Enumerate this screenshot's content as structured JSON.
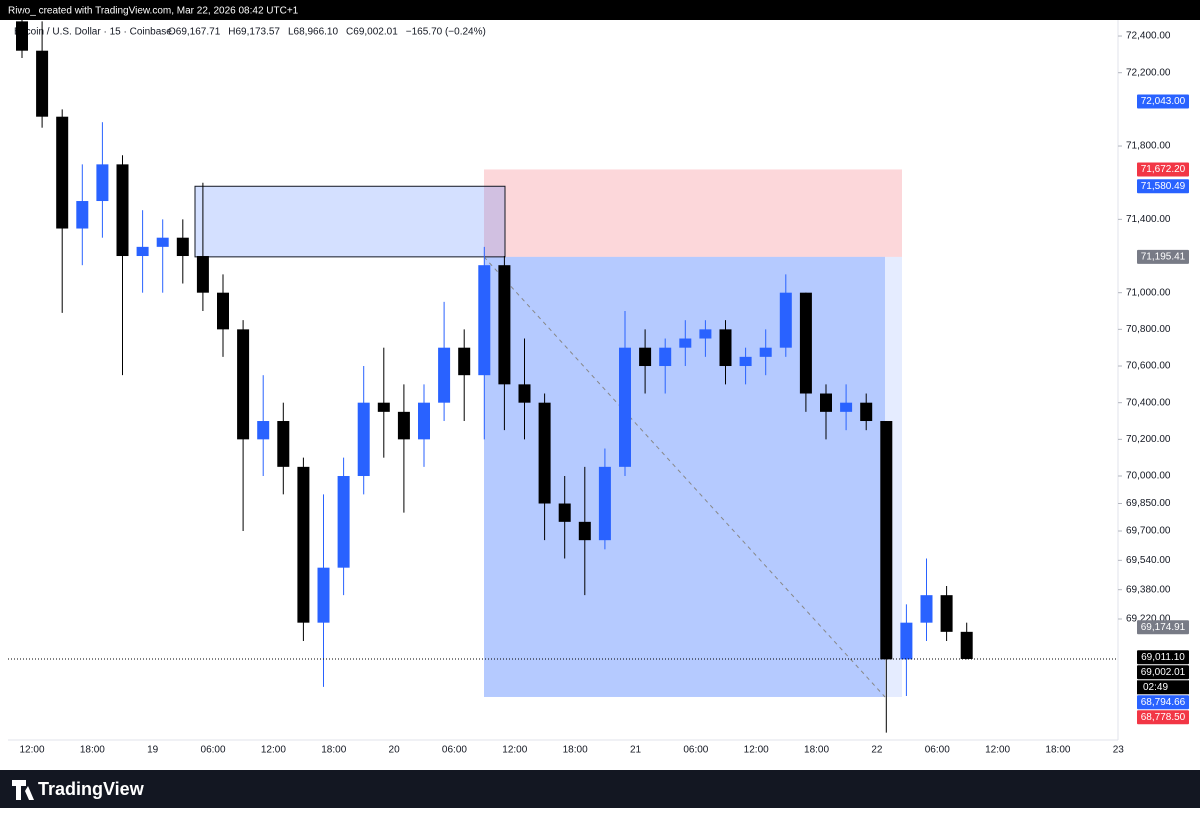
{
  "header": {
    "credit": "Riwo_ created with TradingView.com, Mar 22, 2026 08:42 UTC+1"
  },
  "footer": {
    "brand": "TradingView"
  },
  "chart_data": {
    "type": "candlestick",
    "title": "Bitcoin / U.S. Dollar · 15 · Coinbase",
    "ohlc_readout": [
      "O69,167.71",
      "H69,173.57",
      "L68,966.10",
      "C69,002.01",
      "−165.70 (−0.24%)"
    ],
    "up_color": "#2962ff",
    "down_color": "#000000",
    "candles": {
      "open": [
        72480,
        72320,
        71960,
        71350,
        71500,
        71700,
        71200,
        71250,
        71300,
        71200,
        71000,
        70800,
        70200,
        70300,
        70050,
        69200,
        69500,
        70000,
        70400,
        70350,
        70200,
        70400,
        70700,
        70550,
        71150,
        70500,
        70400,
        69850,
        69750,
        69650,
        70050,
        70700,
        70600,
        70700,
        70750,
        70800,
        70600,
        70650,
        70700,
        71000,
        70450,
        70350,
        70400,
        70300,
        69000,
        69200,
        69350,
        69150
      ],
      "high": [
        72540,
        72480,
        72000,
        71700,
        71930,
        71750,
        71450,
        71400,
        71400,
        71600,
        71100,
        70850,
        70550,
        70400,
        70100,
        69900,
        70100,
        70600,
        70700,
        70500,
        70500,
        70950,
        70800,
        71250,
        71200,
        70750,
        70450,
        70000,
        70050,
        70150,
        70900,
        70800,
        70750,
        70850,
        70850,
        70850,
        70700,
        70800,
        71100,
        71000,
        70500,
        70500,
        70450,
        70300,
        69300,
        69550,
        69400,
        69200
      ],
      "low": [
        72280,
        71900,
        70890,
        71150,
        71300,
        70550,
        71000,
        71000,
        71050,
        70900,
        70650,
        69700,
        70000,
        69900,
        69100,
        68850,
        69350,
        69900,
        70100,
        69800,
        70050,
        70300,
        70300,
        70200,
        70250,
        70200,
        69650,
        69550,
        69350,
        69600,
        70000,
        70450,
        70450,
        70600,
        70650,
        70500,
        70500,
        70550,
        70650,
        70350,
        70200,
        70250,
        70250,
        68600,
        68800,
        69100,
        69100,
        69000
      ],
      "close": [
        72320,
        71960,
        71350,
        71500,
        71700,
        71200,
        71250,
        71300,
        71200,
        71000,
        70800,
        70200,
        70300,
        70050,
        69200,
        69500,
        70000,
        70400,
        70350,
        70200,
        70400,
        70700,
        70550,
        71150,
        70500,
        70400,
        69850,
        69750,
        69650,
        70050,
        70700,
        70600,
        70700,
        70750,
        70800,
        70600,
        70650,
        70700,
        71000,
        70450,
        70350,
        70400,
        70300,
        69000,
        69200,
        69350,
        69150,
        69002.01
      ]
    },
    "time_labels": [
      "12:00",
      "18:00",
      "19",
      "06:00",
      "12:00",
      "18:00",
      "20",
      "06:00",
      "12:00",
      "18:00",
      "21",
      "06:00",
      "12:00",
      "18:00",
      "22",
      "06:00",
      "12:00",
      "18:00",
      "23"
    ],
    "ylim": [
      68560,
      72542
    ],
    "yticks": [
      {
        "value": 72400,
        "label": "72,400.00"
      },
      {
        "value": 72200,
        "label": "72,200.00"
      },
      {
        "value": 71800,
        "label": "71,800.00"
      },
      {
        "value": 71400,
        "label": "71,400.00"
      },
      {
        "value": 71000,
        "label": "71,000.00"
      },
      {
        "value": 70800,
        "label": "70,800.00"
      },
      {
        "value": 70600,
        "label": "70,600.00"
      },
      {
        "value": 70400,
        "label": "70,400.00"
      },
      {
        "value": 70200,
        "label": "70,200.00"
      },
      {
        "value": 70000,
        "label": "70,000.00"
      },
      {
        "value": 69850,
        "label": "69,850.00"
      },
      {
        "value": 69700,
        "label": "69,700.00"
      },
      {
        "value": 69540,
        "label": "69,540.00"
      },
      {
        "value": 69380,
        "label": "69,380.00"
      },
      {
        "value": 69220,
        "label": "69,220.00"
      }
    ],
    "price_tags": [
      {
        "value": 72043,
        "label": "72,043.00",
        "color": "#2962ff"
      },
      {
        "value": 71672.2,
        "label": "71,672.20",
        "color": "#f23645"
      },
      {
        "value": 71580.49,
        "label": "71,580.49",
        "color": "#2962ff"
      },
      {
        "value": 71195.41,
        "label": "71,195.41",
        "color": "#787b86"
      },
      {
        "value": 69174.91,
        "label": "69,174.91",
        "color": "#787b86"
      },
      {
        "value": 69011.1,
        "label": "69,011.10",
        "color": "#000000"
      },
      {
        "value": 69002.01,
        "label": "69,002.01",
        "color": "#000000"
      },
      {
        "value": 68794.66,
        "label": "68,794.66",
        "color": "#2962ff"
      },
      {
        "value": 68778.5,
        "label": "68,778.50",
        "color": "#f23645"
      }
    ],
    "countdown": "02:49"
  }
}
